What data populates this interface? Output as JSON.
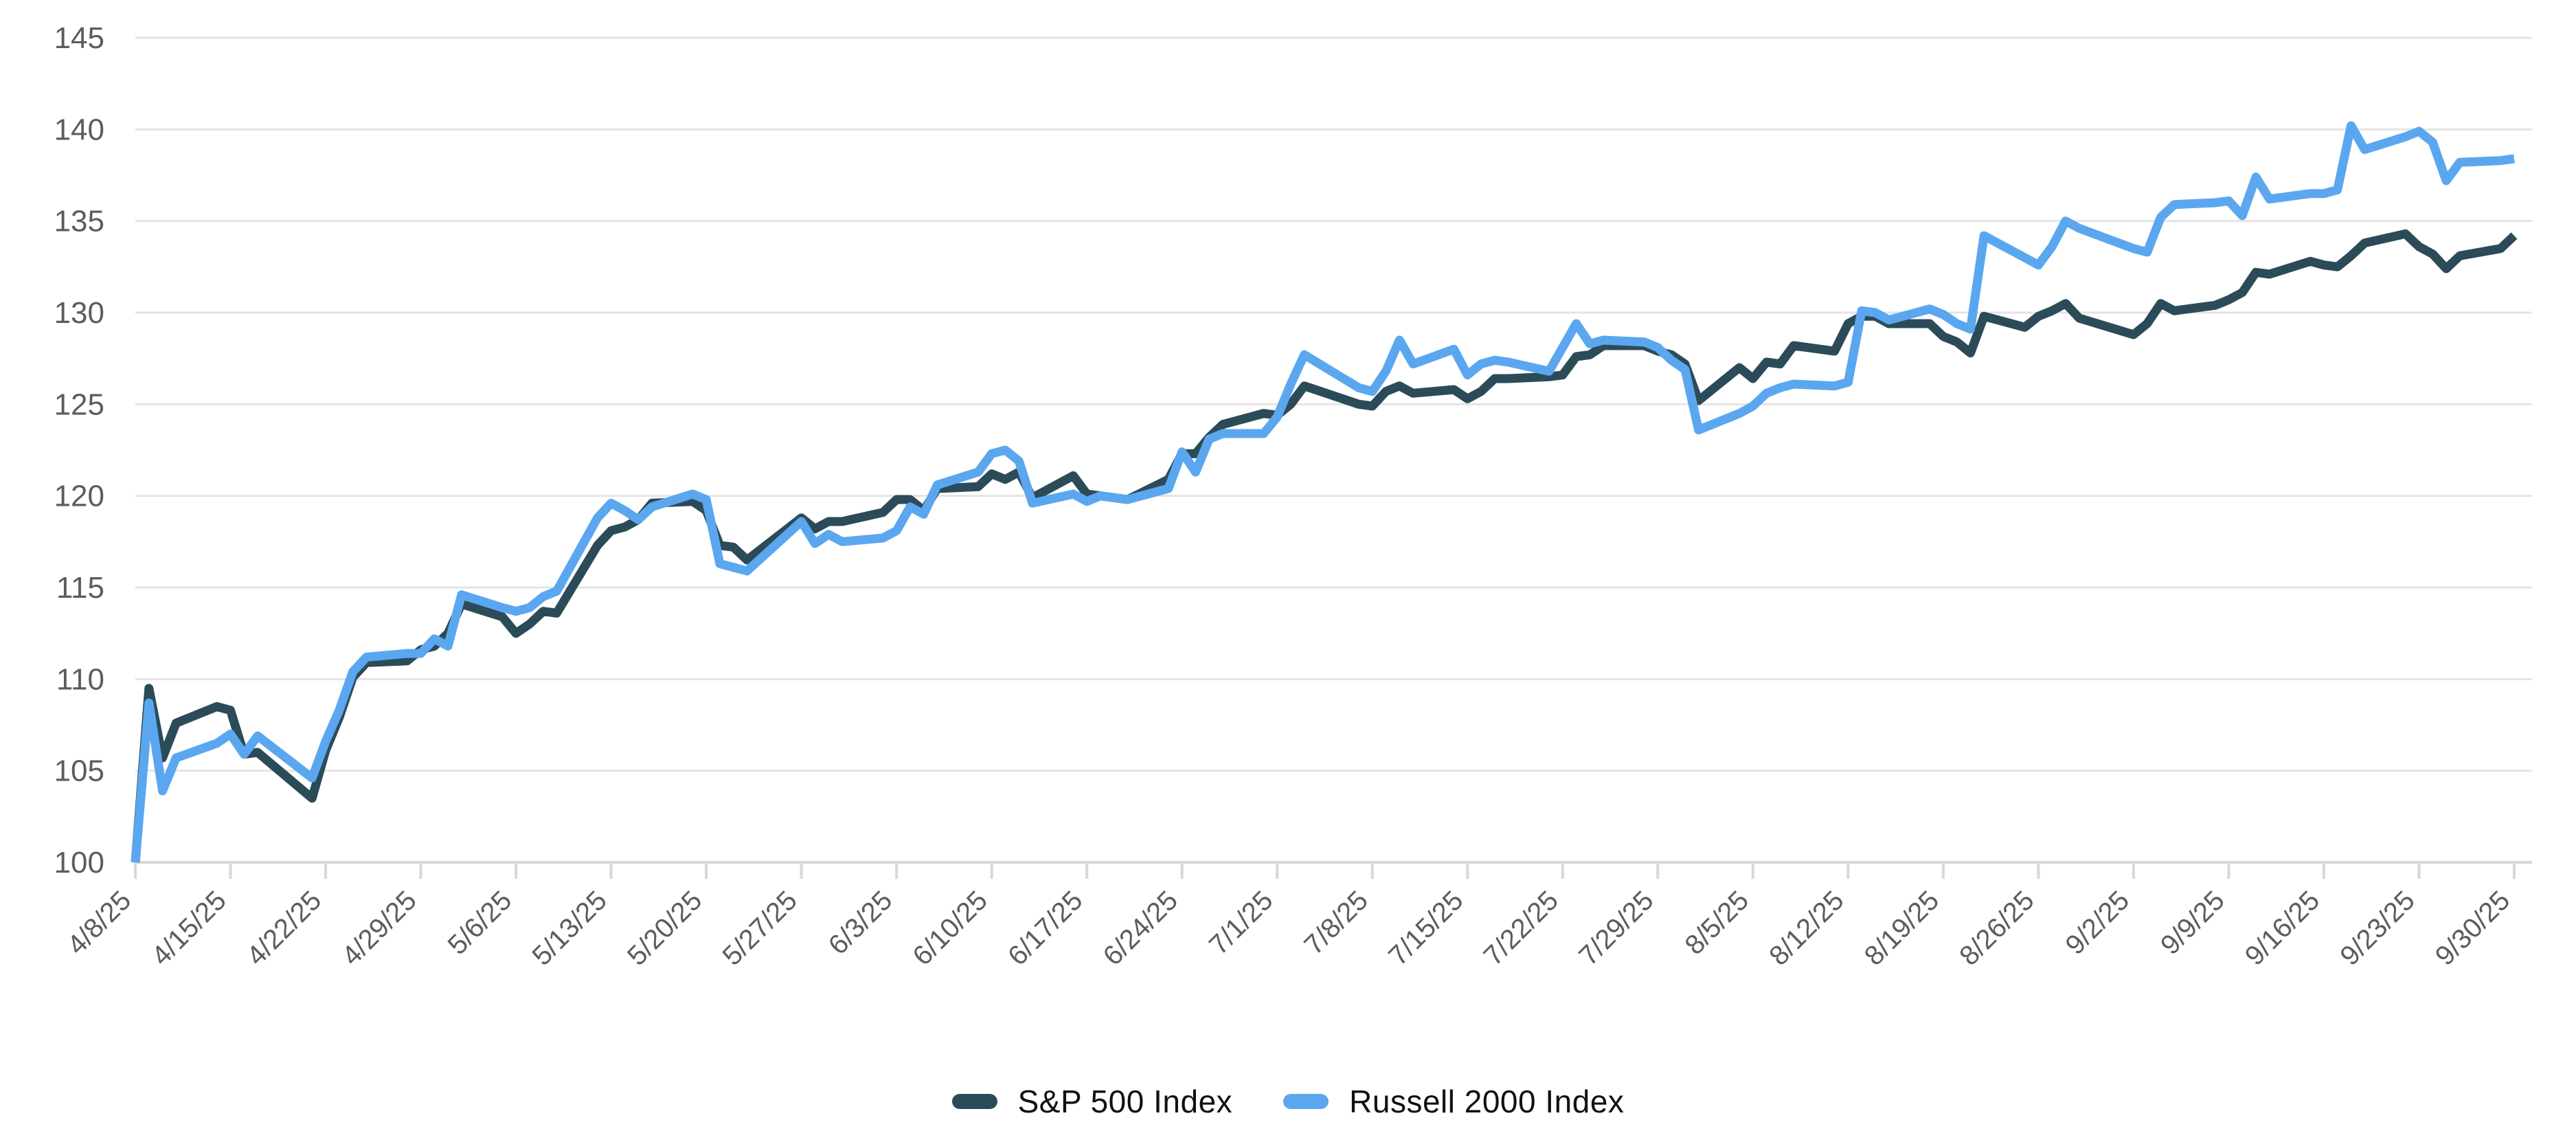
{
  "chart": {
    "accent_colors": {
      "sp500": "#2c4b59",
      "russell2000": "#5aa7f0",
      "gridline": "#e4e4e4",
      "axis_line": "#d8d8d8",
      "tick_text": "#5c5c5c",
      "legend_text": "#111111"
    }
  },
  "legend": {
    "items": [
      {
        "id": "sp500",
        "label": "S&P 500 Index",
        "color": "#2c4b59"
      },
      {
        "id": "russell2000",
        "label": "Russell 2000 Index",
        "color": "#5aa7f0"
      }
    ]
  },
  "chart_data": {
    "type": "line",
    "title": "",
    "xlabel": "",
    "ylabel": "",
    "ylim": [
      100,
      145
    ],
    "y_ticks": [
      100,
      105,
      110,
      115,
      120,
      125,
      130,
      135,
      140,
      145
    ],
    "grid": "horizontal",
    "legend_position": "bottom-center",
    "x_tick_labels": [
      "4/8/25",
      "4/15/25",
      "4/22/25",
      "4/29/25",
      "5/6/25",
      "5/13/25",
      "5/20/25",
      "5/27/25",
      "6/3/25",
      "6/10/25",
      "6/17/25",
      "6/24/25",
      "7/1/25",
      "7/8/25",
      "7/15/25",
      "7/22/25",
      "7/29/25",
      "8/5/25",
      "8/12/25",
      "8/19/25",
      "8/26/25",
      "9/2/25",
      "9/9/25",
      "9/16/25",
      "9/23/25",
      "9/30/25"
    ],
    "x": [
      "4/8/25",
      "4/9/25",
      "4/10/25",
      "4/11/25",
      "4/14/25",
      "4/15/25",
      "4/16/25",
      "4/17/25",
      "4/21/25",
      "4/22/25",
      "4/23/25",
      "4/24/25",
      "4/25/25",
      "4/28/25",
      "4/29/25",
      "4/30/25",
      "5/1/25",
      "5/2/25",
      "5/5/25",
      "5/6/25",
      "5/7/25",
      "5/8/25",
      "5/9/25",
      "5/12/25",
      "5/13/25",
      "5/14/25",
      "5/15/25",
      "5/16/25",
      "5/19/25",
      "5/20/25",
      "5/21/25",
      "5/22/25",
      "5/23/25",
      "5/27/25",
      "5/28/25",
      "5/29/25",
      "5/30/25",
      "6/2/25",
      "6/3/25",
      "6/4/25",
      "6/5/25",
      "6/6/25",
      "6/9/25",
      "6/10/25",
      "6/11/25",
      "6/12/25",
      "6/13/25",
      "6/16/25",
      "6/17/25",
      "6/18/25",
      "6/20/25",
      "6/23/25",
      "6/24/25",
      "6/25/25",
      "6/26/25",
      "6/27/25",
      "6/30/25",
      "7/1/25",
      "7/2/25",
      "7/3/25",
      "7/7/25",
      "7/8/25",
      "7/9/25",
      "7/10/25",
      "7/11/25",
      "7/14/25",
      "7/15/25",
      "7/16/25",
      "7/17/25",
      "7/18/25",
      "7/21/25",
      "7/22/25",
      "7/23/25",
      "7/24/25",
      "7/25/25",
      "7/28/25",
      "7/29/25",
      "7/30/25",
      "7/31/25",
      "8/1/25",
      "8/4/25",
      "8/5/25",
      "8/6/25",
      "8/7/25",
      "8/8/25",
      "8/11/25",
      "8/12/25",
      "8/13/25",
      "8/14/25",
      "8/15/25",
      "8/18/25",
      "8/19/25",
      "8/20/25",
      "8/21/25",
      "8/22/25",
      "8/25/25",
      "8/26/25",
      "8/27/25",
      "8/28/25",
      "8/29/25",
      "9/2/25",
      "9/3/25",
      "9/4/25",
      "9/5/25",
      "9/8/25",
      "9/9/25",
      "9/10/25",
      "9/11/25",
      "9/12/25",
      "9/15/25",
      "9/16/25",
      "9/17/25",
      "9/18/25",
      "9/19/25",
      "9/22/25",
      "9/23/25",
      "9/24/25",
      "9/25/25",
      "9/26/25",
      "9/29/25",
      "9/30/25"
    ],
    "series": [
      {
        "name": "S&P 500 Index",
        "color": "#2c4b59",
        "values": [
          100.0,
          109.5,
          105.7,
          107.6,
          108.5,
          108.3,
          105.9,
          106.0,
          103.5,
          106.1,
          107.9,
          110.1,
          110.9,
          111.0,
          111.6,
          111.8,
          112.5,
          114.1,
          113.4,
          112.5,
          113.0,
          113.7,
          113.6,
          117.3,
          118.1,
          118.3,
          118.7,
          119.6,
          119.7,
          119.2,
          117.3,
          117.2,
          116.5,
          118.8,
          118.2,
          118.6,
          118.6,
          119.1,
          119.8,
          119.8,
          119.2,
          120.4,
          120.5,
          121.2,
          120.9,
          121.3,
          119.9,
          121.1,
          120.1,
          120.0,
          119.8,
          120.9,
          122.3,
          122.3,
          123.2,
          123.9,
          124.5,
          124.4,
          125.0,
          126.0,
          125.0,
          124.9,
          125.7,
          126.0,
          125.6,
          125.8,
          125.3,
          125.7,
          126.4,
          126.4,
          126.5,
          126.6,
          127.6,
          127.7,
          128.2,
          128.2,
          127.9,
          127.7,
          127.2,
          125.2,
          127.0,
          126.4,
          127.3,
          127.2,
          128.2,
          127.9,
          129.4,
          129.8,
          129.8,
          129.4,
          129.4,
          128.7,
          128.4,
          127.8,
          129.8,
          129.2,
          129.8,
          130.1,
          130.5,
          129.7,
          128.8,
          129.4,
          130.5,
          130.1,
          130.4,
          130.7,
          131.1,
          132.2,
          132.1,
          132.8,
          132.6,
          132.5,
          133.1,
          133.8,
          134.3,
          133.6,
          133.2,
          132.4,
          133.1,
          133.5,
          134.2
        ]
      },
      {
        "name": "Russell 2000 Index",
        "color": "#5aa7f0",
        "values": [
          100.0,
          108.7,
          103.9,
          105.7,
          106.5,
          107.0,
          105.9,
          106.9,
          104.6,
          106.6,
          108.3,
          110.4,
          111.2,
          111.4,
          111.4,
          112.2,
          111.8,
          114.6,
          113.9,
          113.7,
          113.9,
          114.5,
          114.8,
          118.8,
          119.6,
          119.2,
          118.7,
          119.4,
          120.1,
          119.8,
          116.3,
          116.1,
          115.9,
          118.6,
          117.4,
          117.9,
          117.5,
          117.7,
          118.1,
          119.4,
          119.0,
          120.6,
          121.3,
          122.3,
          122.5,
          121.9,
          119.6,
          120.1,
          119.7,
          120.0,
          119.8,
          120.4,
          122.4,
          121.3,
          123.1,
          123.4,
          123.4,
          124.3,
          126.1,
          127.7,
          125.9,
          125.7,
          126.8,
          128.5,
          127.2,
          128.0,
          126.6,
          127.2,
          127.4,
          127.3,
          126.8,
          128.1,
          129.4,
          128.3,
          128.5,
          128.4,
          128.1,
          127.4,
          126.9,
          123.6,
          124.5,
          124.9,
          125.6,
          125.9,
          126.1,
          126.0,
          126.2,
          130.1,
          130.0,
          129.6,
          130.2,
          129.9,
          129.4,
          129.1,
          134.2,
          133.0,
          132.6,
          133.6,
          135.0,
          134.6,
          133.5,
          133.3,
          135.2,
          135.9,
          136.0,
          136.1,
          135.3,
          137.4,
          136.2,
          136.5,
          136.5,
          136.7,
          140.2,
          138.9,
          139.6,
          139.9,
          139.3,
          137.2,
          138.2,
          138.3,
          138.4
        ]
      }
    ]
  }
}
